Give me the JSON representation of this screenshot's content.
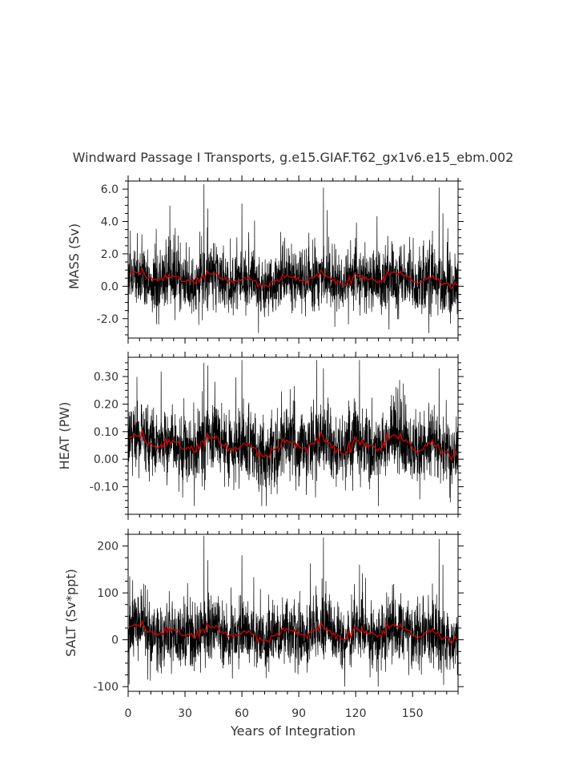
{
  "chart_data": {
    "title": "Windward Passage I Transports, g.e15.GIAF.T62_gx1v6.e15_ebm.002",
    "xlabel": "Years of Integration",
    "xlim": [
      0,
      174
    ],
    "x_ticks": [
      "0",
      "30",
      "60",
      "90",
      "120",
      "150"
    ],
    "panels": [
      {
        "type": "line",
        "ylabel": "MASS (Sv)",
        "ylim": [
          -3.2,
          6.5
        ],
        "y_ticks": [
          "6.0",
          "4.0",
          "2.0",
          "0.0",
          "-2.0"
        ],
        "series": [
          {
            "kind": "monthly",
            "color": "#000000",
            "mean": 0.35,
            "spread": 0.9,
            "low": -2.9,
            "high": 6.3,
            "spikes": [
              [
                40,
                6.3
              ],
              [
                42,
                4.8
              ],
              [
                60,
                5.1
              ],
              [
                103,
                6.1
              ],
              [
                105,
                4.7
              ],
              [
                164,
                6.1
              ],
              [
                166,
                4.5
              ]
            ]
          },
          {
            "kind": "annual_mean",
            "color": "#cc0000",
            "mean": 0.45,
            "amplitude": 0.45
          }
        ]
      },
      {
        "type": "line",
        "ylabel": "HEAT (PW)",
        "ylim": [
          -0.2,
          0.37
        ],
        "y_ticks": [
          "0.30",
          "0.20",
          "0.10",
          "0.00",
          "-0.10"
        ],
        "series": [
          {
            "kind": "monthly",
            "color": "#000000",
            "mean": 0.05,
            "spread": 0.06,
            "low": -0.17,
            "high": 0.36,
            "spikes": [
              [
                40,
                0.35
              ],
              [
                42,
                0.34
              ],
              [
                60,
                0.36
              ],
              [
                103,
                0.33
              ],
              [
                122,
                0.36
              ],
              [
                164,
                0.33
              ]
            ]
          },
          {
            "kind": "annual_mean",
            "color": "#cc0000",
            "mean": 0.05,
            "amplitude": 0.04
          }
        ]
      },
      {
        "type": "line",
        "ylabel": "SALT (Sv*ppt)",
        "ylim": [
          -110,
          225
        ],
        "y_ticks": [
          "200",
          "100",
          "0",
          "-100"
        ],
        "series": [
          {
            "kind": "monthly",
            "color": "#000000",
            "mean": 12,
            "spread": 33,
            "low": -100,
            "high": 222,
            "spikes": [
              [
                40,
                222
              ],
              [
                42,
                170
              ],
              [
                60,
                180
              ],
              [
                103,
                218
              ],
              [
                122,
                160
              ],
              [
                164,
                215
              ],
              [
                166,
                160
              ]
            ]
          },
          {
            "kind": "annual_mean",
            "color": "#cc0000",
            "mean": 15,
            "amplitude": 18
          }
        ]
      }
    ]
  }
}
